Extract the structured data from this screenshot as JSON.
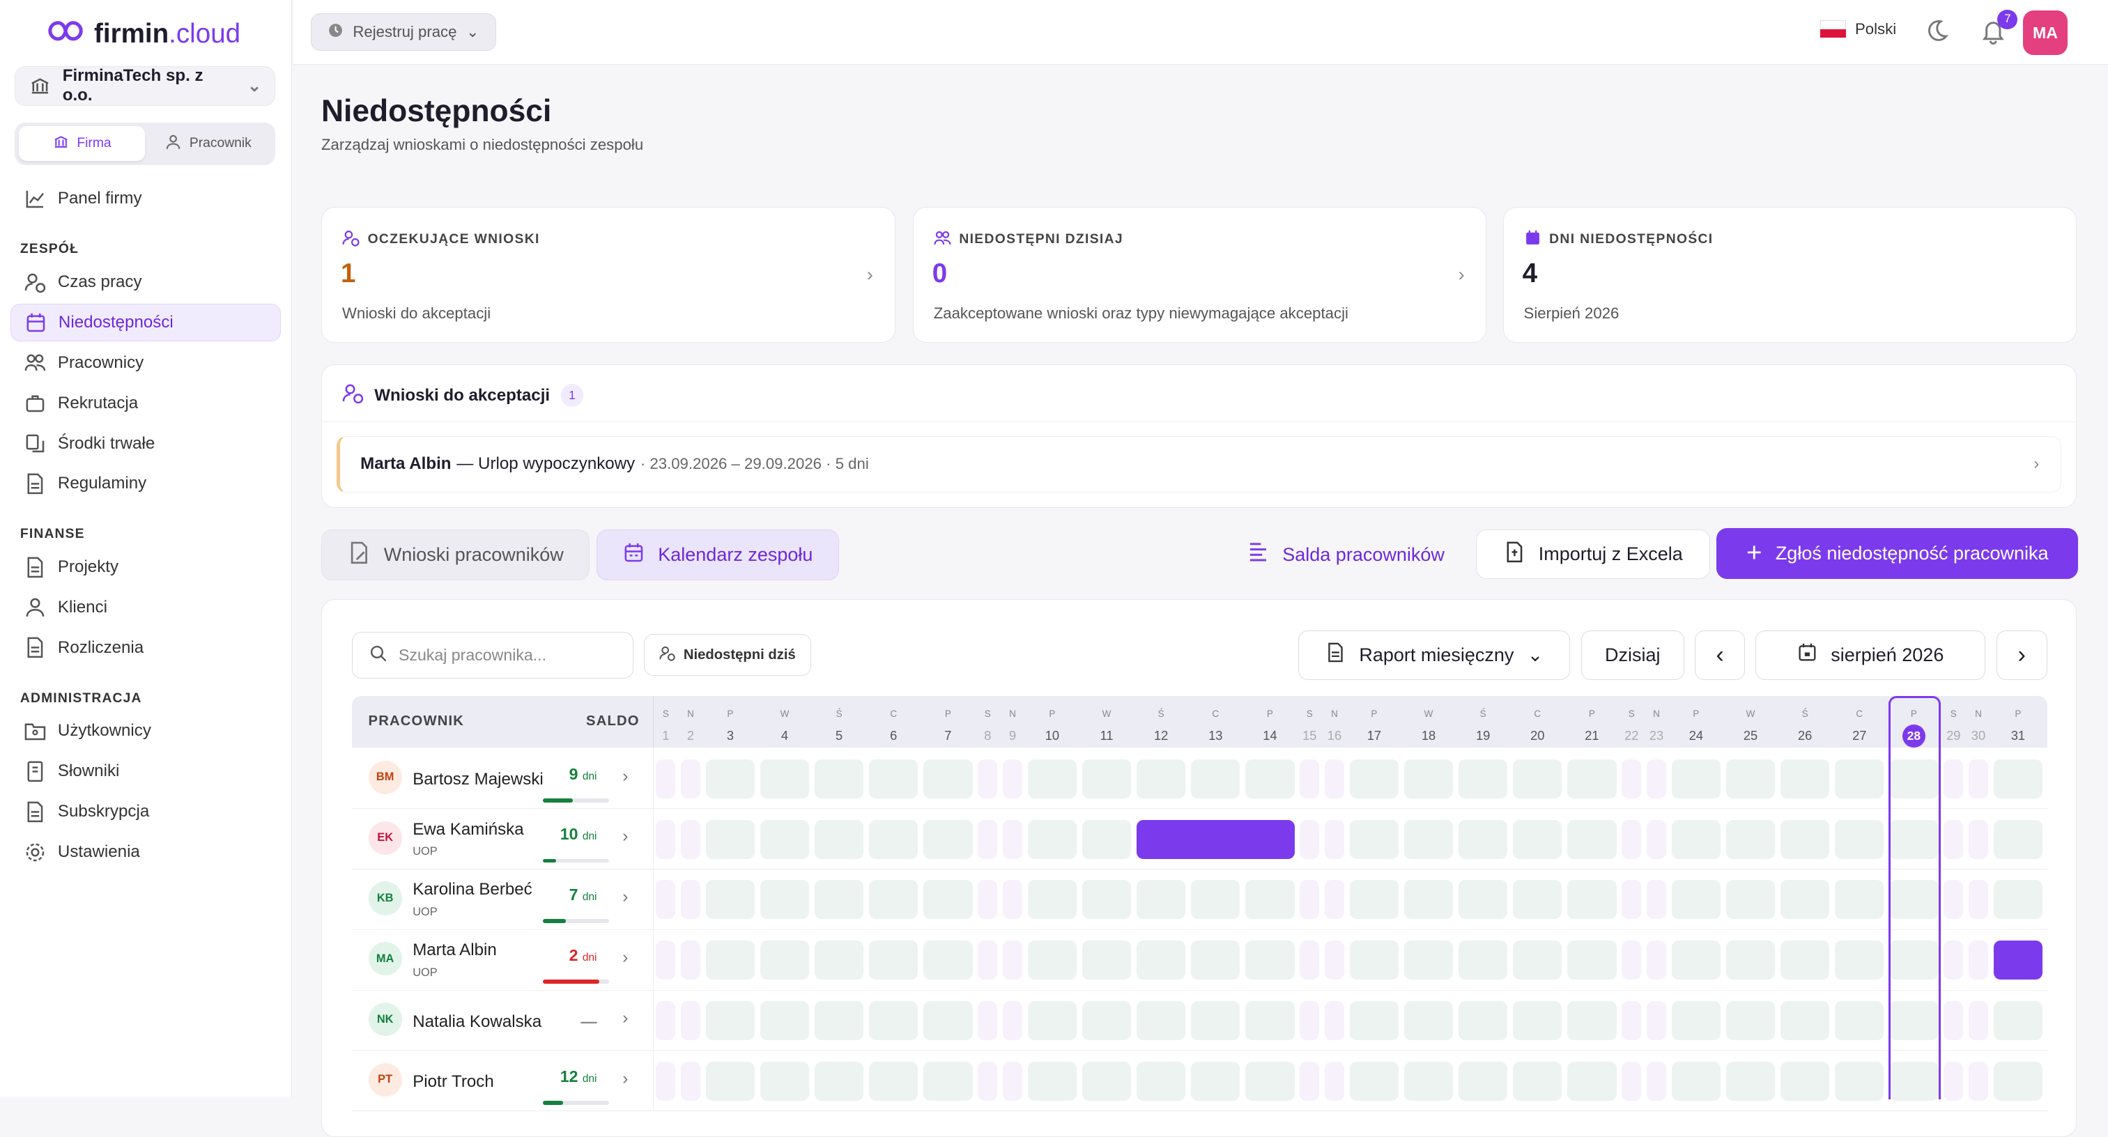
{
  "app": {
    "logo_main": "firmin",
    "logo_suffix": ".cloud"
  },
  "company": {
    "name": "FirminaTech sp. z o.o."
  },
  "mode": {
    "firma": "Firma",
    "pracownik": "Pracownik"
  },
  "sidebar": {
    "panel": "Panel firmy",
    "section_team": "ZESPÓŁ",
    "team_items": [
      "Czas pracy",
      "Niedostępności",
      "Pracownicy",
      "Rekrutacja",
      "Środki trwałe",
      "Regulaminy"
    ],
    "section_finance": "FINANSE",
    "finance_items": [
      "Projekty",
      "Klienci",
      "Rozliczenia"
    ],
    "section_admin": "ADMINISTRACJA",
    "admin_items": [
      "Użytkownicy",
      "Słowniki",
      "Subskrypcja",
      "Ustawienia"
    ]
  },
  "topbar": {
    "register": "Rejestruj pracę",
    "language": "Polski",
    "notifications": "7",
    "avatar": "MA"
  },
  "page": {
    "title": "Niedostępności",
    "subtitle": "Zarządzaj wnioskami o niedostępności zespołu"
  },
  "cards": [
    {
      "label": "OCZEKUJĄCE WNIOSKI",
      "value": "1",
      "desc": "Wnioski do akceptacji",
      "color": "#c2620f"
    },
    {
      "label": "NIEDOSTĘPNI DZISIAJ",
      "value": "0",
      "desc": "Zaakceptowane wnioski oraz typy niewymagające akceptacji",
      "color": "#7c3aed"
    },
    {
      "label": "DNI NIEDOSTĘPNOŚCI",
      "value": "4",
      "desc": "Sierpień 2026",
      "color": "#1f1d2b"
    }
  ],
  "pending": {
    "title": "Wnioski do akceptacji",
    "count": "1",
    "item": {
      "name": "Marta Albin",
      "type": "— Urlop wypoczynkowy",
      "meta": "· 23.09.2026 – 29.09.2026 · 5 dni"
    }
  },
  "actions": {
    "tab_requests": "Wnioski pracowników",
    "tab_calendar": "Kalendarz zespołu",
    "balances": "Salda pracowników",
    "import": "Importuj z Excela",
    "report": "Zgłoś niedostępność pracownika"
  },
  "toolbar": {
    "search_placeholder": "Szukaj pracownika...",
    "filter": "Niedostępni dziś",
    "report": "Raport miesięczny",
    "today": "Dzisiaj",
    "month": "sierpień 2026"
  },
  "calendar": {
    "col_employee": "PRACOWNIK",
    "col_balance": "SALDO",
    "today": 28,
    "days": [
      {
        "d": "1",
        "w": "S",
        "we": true
      },
      {
        "d": "2",
        "w": "N",
        "we": true
      },
      {
        "d": "3",
        "w": "P"
      },
      {
        "d": "4",
        "w": "W"
      },
      {
        "d": "5",
        "w": "Ś"
      },
      {
        "d": "6",
        "w": "C"
      },
      {
        "d": "7",
        "w": "P"
      },
      {
        "d": "8",
        "w": "S",
        "we": true
      },
      {
        "d": "9",
        "w": "N",
        "we": true
      },
      {
        "d": "10",
        "w": "P"
      },
      {
        "d": "11",
        "w": "W"
      },
      {
        "d": "12",
        "w": "Ś"
      },
      {
        "d": "13",
        "w": "C"
      },
      {
        "d": "14",
        "w": "P"
      },
      {
        "d": "15",
        "w": "S",
        "we": true
      },
      {
        "d": "16",
        "w": "N",
        "we": true
      },
      {
        "d": "17",
        "w": "P"
      },
      {
        "d": "18",
        "w": "W"
      },
      {
        "d": "19",
        "w": "Ś"
      },
      {
        "d": "20",
        "w": "C"
      },
      {
        "d": "21",
        "w": "P"
      },
      {
        "d": "22",
        "w": "S",
        "we": true
      },
      {
        "d": "23",
        "w": "N",
        "we": true
      },
      {
        "d": "24",
        "w": "P"
      },
      {
        "d": "25",
        "w": "W"
      },
      {
        "d": "26",
        "w": "Ś"
      },
      {
        "d": "27",
        "w": "C"
      },
      {
        "d": "28",
        "w": "P"
      },
      {
        "d": "29",
        "w": "S",
        "we": true
      },
      {
        "d": "30",
        "w": "N",
        "we": true
      },
      {
        "d": "31",
        "w": "P"
      }
    ],
    "employees": [
      {
        "initials": "BM",
        "name": "Bartosz Majewski",
        "contract": "",
        "days": "9",
        "unit": "dni",
        "level": 0.45,
        "color": "#15803d",
        "avbg": "#fdebe2",
        "avfg": "#c2410c",
        "absent": []
      },
      {
        "initials": "EK",
        "name": "Ewa Kamińska",
        "contract": "UOP",
        "days": "10",
        "unit": "dni",
        "level": 0.2,
        "color": "#15803d",
        "avbg": "#fde6ea",
        "avfg": "#be123c",
        "absent": [
          12,
          13,
          14
        ]
      },
      {
        "initials": "KB",
        "name": "Karolina Berbeć",
        "contract": "UOP",
        "days": "7",
        "unit": "dni",
        "level": 0.35,
        "color": "#15803d",
        "avbg": "#e2f4ea",
        "avfg": "#15803d",
        "absent": []
      },
      {
        "initials": "MA",
        "name": "Marta Albin",
        "contract": "UOP",
        "days": "2",
        "unit": "dni",
        "level": 0.85,
        "color": "#dc2626",
        "avbg": "#e2f4ea",
        "avfg": "#15803d",
        "absent": [
          31
        ]
      },
      {
        "initials": "NK",
        "name": "Natalia Kowalska",
        "contract": "",
        "days": "—",
        "unit": "",
        "level": 0,
        "color": "#888888",
        "avbg": "#e2f4ea",
        "avfg": "#15803d",
        "absent": []
      },
      {
        "initials": "PT",
        "name": "Piotr Troch",
        "contract": "",
        "days": "12",
        "unit": "dni",
        "level": 0.3,
        "color": "#15803d",
        "avbg": "#fdebe2",
        "avfg": "#c2410c",
        "absent": []
      }
    ]
  }
}
